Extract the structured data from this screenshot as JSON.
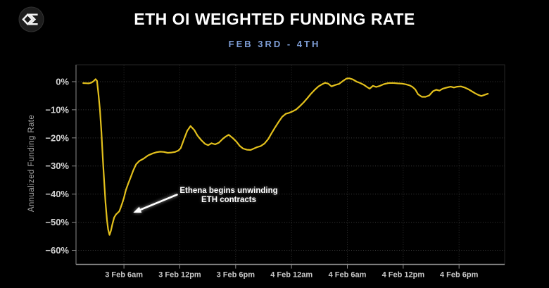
{
  "header": {
    "title": "ETH OI WEIGHTED FUNDING RATE",
    "subtitle": "FEB 3RD - 4TH",
    "logo_icon": "sigma-diamond-logo"
  },
  "colors": {
    "background": "#000000",
    "title": "#ffffff",
    "subtitle": "#7f9fd8",
    "line": "#e3c01c",
    "grid": "#6a6a6a",
    "axis": "#8a8a8a",
    "spine_faint": "#262626",
    "tick_label_y": "#d2d2d2",
    "tick_label_x": "#c9c9c9",
    "axis_title": "#a6a6a6",
    "annotation": "#ffffff"
  },
  "chart_data": {
    "type": "line",
    "title": "ETH OI WEIGHTED FUNDING RATE",
    "subtitle": "FEB 3RD - 4TH",
    "xlabel": "",
    "ylabel": "Annualized Funding Rate",
    "x_unit": "hours since 3 Feb 12:00am",
    "xlim": [
      0.85,
      46.9
    ],
    "ylim": [
      -65,
      6
    ],
    "grid": true,
    "legend": "none",
    "y_ticks": [
      {
        "v": 0,
        "label": "0%"
      },
      {
        "v": -10,
        "label": "−10%"
      },
      {
        "v": -20,
        "label": "−20%"
      },
      {
        "v": -30,
        "label": "−30%"
      },
      {
        "v": -40,
        "label": "−40%"
      },
      {
        "v": -50,
        "label": "−50%"
      },
      {
        "v": -60,
        "label": "−60%"
      }
    ],
    "x_ticks": [
      {
        "v": 6,
        "label": "3 Feb 6am"
      },
      {
        "v": 12,
        "label": "3 Feb 12pm"
      },
      {
        "v": 18,
        "label": "3 Feb 6pm"
      },
      {
        "v": 24,
        "label": "4 Feb 12am"
      },
      {
        "v": 30,
        "label": "4 Feb 6am"
      },
      {
        "v": 36,
        "label": "4 Feb 12pm"
      },
      {
        "v": 42,
        "label": "4 Feb 6pm"
      }
    ],
    "series": [
      {
        "name": "ETH OI weighted funding rate (annualized %)",
        "points": [
          [
            1.62,
            -0.5
          ],
          [
            1.9,
            -0.55
          ],
          [
            2.2,
            -0.6
          ],
          [
            2.5,
            -0.35
          ],
          [
            2.75,
            0.2
          ],
          [
            2.95,
            0.9
          ],
          [
            3.1,
            0.3
          ],
          [
            3.25,
            -4
          ],
          [
            3.42,
            -10
          ],
          [
            3.58,
            -18
          ],
          [
            3.72,
            -27
          ],
          [
            3.87,
            -35
          ],
          [
            4.02,
            -43
          ],
          [
            4.17,
            -49
          ],
          [
            4.3,
            -52.5
          ],
          [
            4.45,
            -54.5
          ],
          [
            4.6,
            -53
          ],
          [
            4.75,
            -50.8
          ],
          [
            4.95,
            -48.3
          ],
          [
            5.15,
            -47.2
          ],
          [
            5.35,
            -46.6
          ],
          [
            5.5,
            -46.1
          ],
          [
            5.65,
            -44.8
          ],
          [
            5.82,
            -43.2
          ],
          [
            6.0,
            -41.3
          ],
          [
            6.2,
            -38.6
          ],
          [
            6.45,
            -36.3
          ],
          [
            6.7,
            -34.2
          ],
          [
            7.0,
            -31.6
          ],
          [
            7.3,
            -29.4
          ],
          [
            7.65,
            -28.2
          ],
          [
            8.1,
            -27.4
          ],
          [
            8.6,
            -26.2
          ],
          [
            9.1,
            -25.5
          ],
          [
            9.5,
            -25.1
          ],
          [
            9.9,
            -24.9
          ],
          [
            10.3,
            -25
          ],
          [
            10.7,
            -25.3
          ],
          [
            11.1,
            -25.2
          ],
          [
            11.5,
            -25
          ],
          [
            11.85,
            -24.5
          ],
          [
            12.1,
            -23.6
          ],
          [
            12.45,
            -20.5
          ],
          [
            12.8,
            -17.5
          ],
          [
            13.15,
            -15.8
          ],
          [
            13.55,
            -17.2
          ],
          [
            13.9,
            -19.2
          ],
          [
            14.3,
            -20.8
          ],
          [
            14.7,
            -22.1
          ],
          [
            15.05,
            -22.6
          ],
          [
            15.4,
            -21.9
          ],
          [
            15.8,
            -22.3
          ],
          [
            16.2,
            -21.7
          ],
          [
            16.6,
            -20.4
          ],
          [
            16.95,
            -19.5
          ],
          [
            17.25,
            -18.9
          ],
          [
            17.7,
            -20.1
          ],
          [
            18.1,
            -21.4
          ],
          [
            18.45,
            -22.9
          ],
          [
            18.8,
            -23.8
          ],
          [
            19.2,
            -24.2
          ],
          [
            19.6,
            -24.3
          ],
          [
            19.95,
            -23.8
          ],
          [
            20.3,
            -23.3
          ],
          [
            20.7,
            -22.9
          ],
          [
            21.1,
            -22
          ],
          [
            21.5,
            -20.4
          ],
          [
            21.85,
            -18.4
          ],
          [
            22.2,
            -16.5
          ],
          [
            22.6,
            -14.4
          ],
          [
            23.0,
            -12.5
          ],
          [
            23.4,
            -11.4
          ],
          [
            23.75,
            -11.1
          ],
          [
            24.1,
            -10.6
          ],
          [
            24.5,
            -9.9
          ],
          [
            24.9,
            -8.7
          ],
          [
            25.3,
            -7.4
          ],
          [
            25.7,
            -5.9
          ],
          [
            26.1,
            -4.3
          ],
          [
            26.5,
            -2.9
          ],
          [
            26.9,
            -1.7
          ],
          [
            27.3,
            -0.9
          ],
          [
            27.6,
            -0.4
          ],
          [
            27.95,
            -0.7
          ],
          [
            28.3,
            -1.7
          ],
          [
            28.7,
            -1.2
          ],
          [
            29.1,
            -0.8
          ],
          [
            29.5,
            0.2
          ],
          [
            29.9,
            1.1
          ],
          [
            30.2,
            1.2
          ],
          [
            30.6,
            0.8
          ],
          [
            31.0,
            0
          ],
          [
            31.4,
            -0.5
          ],
          [
            31.8,
            -1.2
          ],
          [
            32.1,
            -1.9
          ],
          [
            32.4,
            -2.5
          ],
          [
            32.75,
            -1.5
          ],
          [
            33.1,
            -1.9
          ],
          [
            33.5,
            -1.5
          ],
          [
            33.9,
            -0.9
          ],
          [
            34.4,
            -0.5
          ],
          [
            34.9,
            -0.45
          ],
          [
            35.4,
            -0.6
          ],
          [
            35.9,
            -0.7
          ],
          [
            36.3,
            -0.95
          ],
          [
            36.7,
            -1.35
          ],
          [
            37.0,
            -1.9
          ],
          [
            37.3,
            -2.8
          ],
          [
            37.6,
            -4.5
          ],
          [
            38.0,
            -5.4
          ],
          [
            38.4,
            -5.4
          ],
          [
            38.8,
            -4.9
          ],
          [
            39.2,
            -3.4
          ],
          [
            39.55,
            -2.9
          ],
          [
            39.9,
            -3.2
          ],
          [
            40.25,
            -2.5
          ],
          [
            40.7,
            -2.1
          ],
          [
            41.1,
            -1.8
          ],
          [
            41.45,
            -2.1
          ],
          [
            41.8,
            -1.8
          ],
          [
            42.2,
            -1.7
          ],
          [
            42.6,
            -2.1
          ],
          [
            43.0,
            -2.7
          ],
          [
            43.35,
            -3.4
          ],
          [
            43.7,
            -4.1
          ],
          [
            44.05,
            -4.7
          ],
          [
            44.4,
            -5.1
          ],
          [
            44.75,
            -4.7
          ],
          [
            45.1,
            -4.3
          ]
        ]
      }
    ],
    "annotation": {
      "text_line1": "Ethena begins unwinding",
      "text_line2": "ETH contracts",
      "arrow_from": [
        11.7,
        -40.2
      ],
      "arrow_to": [
        7.0,
        -46.6
      ]
    }
  }
}
